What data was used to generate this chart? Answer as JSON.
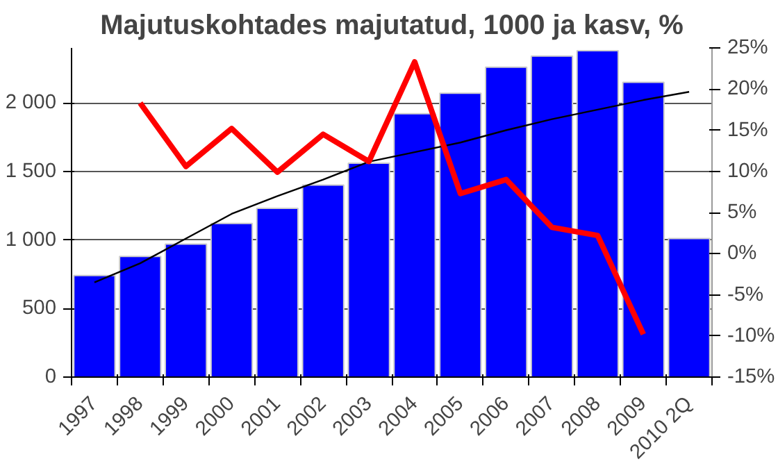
{
  "chart_data": {
    "type": "bar",
    "title": "Majutuskohtades majutatud, 1000 ja kasv, %",
    "categories": [
      "1997",
      "1998",
      "1999",
      "2000",
      "2001",
      "2002",
      "2003",
      "2004",
      "2005",
      "2006",
      "2007",
      "2008",
      "2009",
      "2010 2Q"
    ],
    "series": [
      {
        "color": "#0000ff",
        "values": [
          740,
          880,
          970,
          1120,
          1230,
          1400,
          1560,
          1920,
          2070,
          2260,
          2340,
          2380,
          2150,
          1010
        ]
      },
      {
        "type": "line",
        "color": "#000000",
        "values": [
          690,
          830,
          1010,
          1190,
          1320,
          1440,
          1570,
          1640,
          1710,
          1800,
          1880,
          1950,
          2020,
          2080
        ]
      },
      {
        "type": "line",
        "axis": "y2",
        "color": "#ff0000",
        "values": [
          null,
          18.3,
          10.6,
          15.2,
          9.9,
          14.5,
          11.2,
          23.3,
          7.3,
          9.0,
          3.2,
          2.2,
          -9.8,
          null
        ]
      }
    ],
    "ylim": [
      0,
      2400
    ],
    "yticks": [
      0,
      500,
      {
        "value": 1000,
        "label": "1 000"
      },
      {
        "value": 1500,
        "label": "1 500"
      },
      {
        "value": 2000,
        "label": "2 000"
      }
    ],
    "y2lim": [
      -15,
      25
    ],
    "y2ticks": [
      {
        "value": -15,
        "label": "-15%"
      },
      {
        "value": -10,
        "label": "-10%"
      },
      {
        "value": -5,
        "label": "-5%"
      },
      {
        "value": 0,
        "label": "0%"
      },
      {
        "value": 5,
        "label": "5%"
      },
      {
        "value": 10,
        "label": "10%"
      },
      {
        "value": 15,
        "label": "15%"
      },
      {
        "value": 20,
        "label": "20%"
      },
      {
        "value": 25,
        "label": "25%"
      }
    ],
    "grid": "y"
  }
}
